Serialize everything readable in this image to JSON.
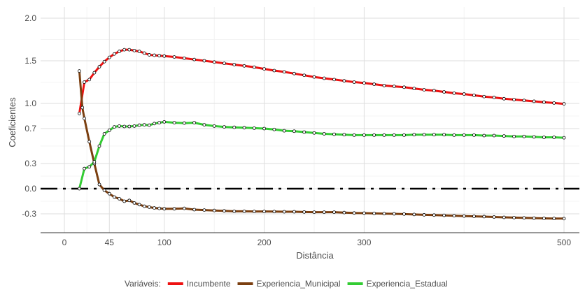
{
  "chart_data": {
    "type": "line",
    "xlabel": "Distância",
    "ylabel": "Coeficientes",
    "x_ticks": [
      0,
      45,
      100,
      200,
      300,
      500
    ],
    "x_tick_labels": [
      "0",
      "45",
      "100",
      "200",
      "300",
      "500"
    ],
    "y_ticks": [
      -0.3,
      0.0,
      0.3,
      0.7,
      1.0,
      1.5,
      2.0
    ],
    "y_tick_labels": [
      "-0.3",
      "0.0",
      "0.3",
      "0.7",
      "1.0",
      "1.5",
      "2.0"
    ],
    "xlim": [
      -20,
      510
    ],
    "ylim": [
      -0.45,
      2.07
    ],
    "y_scale": "nonlinear (labeled ticks)",
    "grid": true,
    "reference_line": {
      "y": 0.0,
      "style": "dash-dot",
      "color": "#000000"
    },
    "legend": {
      "title": "Variáveis:",
      "position": "bottom"
    },
    "colors": {
      "Incumbente": "#ee1111",
      "Experiencia_Municipal": "#7b3f10",
      "Experiencia_Estadual": "#33cc33"
    },
    "series": [
      {
        "name": "Incumbente",
        "points": [
          [
            15,
            0.88
          ],
          [
            20,
            1.25
          ],
          [
            25,
            1.28
          ],
          [
            30,
            1.36
          ],
          [
            35,
            1.43
          ],
          [
            40,
            1.49
          ],
          [
            45,
            1.54
          ],
          [
            50,
            1.58
          ],
          [
            55,
            1.61
          ],
          [
            60,
            1.63
          ],
          [
            65,
            1.63
          ],
          [
            70,
            1.62
          ],
          [
            75,
            1.61
          ],
          [
            80,
            1.59
          ],
          [
            85,
            1.57
          ],
          [
            90,
            1.565
          ],
          [
            95,
            1.56
          ],
          [
            100,
            1.555
          ],
          [
            110,
            1.545
          ],
          [
            120,
            1.53
          ],
          [
            130,
            1.515
          ],
          [
            140,
            1.5
          ],
          [
            150,
            1.485
          ],
          [
            160,
            1.47
          ],
          [
            170,
            1.455
          ],
          [
            180,
            1.44
          ],
          [
            190,
            1.425
          ],
          [
            200,
            1.405
          ],
          [
            210,
            1.385
          ],
          [
            220,
            1.37
          ],
          [
            230,
            1.35
          ],
          [
            240,
            1.33
          ],
          [
            250,
            1.31
          ],
          [
            260,
            1.295
          ],
          [
            270,
            1.28
          ],
          [
            280,
            1.265
          ],
          [
            290,
            1.25
          ],
          [
            300,
            1.24
          ],
          [
            310,
            1.225
          ],
          [
            320,
            1.21
          ],
          [
            330,
            1.2
          ],
          [
            340,
            1.19
          ],
          [
            350,
            1.175
          ],
          [
            360,
            1.16
          ],
          [
            370,
            1.15
          ],
          [
            380,
            1.135
          ],
          [
            390,
            1.12
          ],
          [
            400,
            1.11
          ],
          [
            410,
            1.095
          ],
          [
            420,
            1.08
          ],
          [
            430,
            1.07
          ],
          [
            440,
            1.055
          ],
          [
            450,
            1.045
          ],
          [
            460,
            1.035
          ],
          [
            470,
            1.025
          ],
          [
            480,
            1.015
          ],
          [
            490,
            1.005
          ],
          [
            500,
            0.995
          ]
        ]
      },
      {
        "name": "Experiencia_Municipal",
        "points": [
          [
            15,
            1.38
          ],
          [
            18,
            0.95
          ],
          [
            20,
            0.82
          ],
          [
            25,
            0.55
          ],
          [
            30,
            0.3
          ],
          [
            35,
            0.05
          ],
          [
            40,
            -0.02
          ],
          [
            45,
            -0.06
          ],
          [
            50,
            -0.1
          ],
          [
            55,
            -0.12
          ],
          [
            60,
            -0.15
          ],
          [
            65,
            -0.14
          ],
          [
            70,
            -0.17
          ],
          [
            75,
            -0.19
          ],
          [
            80,
            -0.21
          ],
          [
            85,
            -0.22
          ],
          [
            90,
            -0.23
          ],
          [
            95,
            -0.235
          ],
          [
            100,
            -0.24
          ],
          [
            110,
            -0.24
          ],
          [
            120,
            -0.235
          ],
          [
            130,
            -0.25
          ],
          [
            140,
            -0.255
          ],
          [
            150,
            -0.26
          ],
          [
            160,
            -0.265
          ],
          [
            170,
            -0.27
          ],
          [
            180,
            -0.27
          ],
          [
            190,
            -0.272
          ],
          [
            200,
            -0.272
          ],
          [
            210,
            -0.273
          ],
          [
            220,
            -0.275
          ],
          [
            230,
            -0.275
          ],
          [
            240,
            -0.278
          ],
          [
            250,
            -0.28
          ],
          [
            260,
            -0.28
          ],
          [
            270,
            -0.28
          ],
          [
            280,
            -0.285
          ],
          [
            290,
            -0.29
          ],
          [
            300,
            -0.292
          ],
          [
            310,
            -0.295
          ],
          [
            320,
            -0.298
          ],
          [
            330,
            -0.3
          ],
          [
            340,
            -0.302
          ],
          [
            350,
            -0.305
          ],
          [
            360,
            -0.308
          ],
          [
            370,
            -0.31
          ],
          [
            380,
            -0.312
          ],
          [
            390,
            -0.315
          ],
          [
            400,
            -0.318
          ],
          [
            410,
            -0.32
          ],
          [
            420,
            -0.322
          ],
          [
            430,
            -0.325
          ],
          [
            440,
            -0.328
          ],
          [
            450,
            -0.33
          ],
          [
            460,
            -0.332
          ],
          [
            470,
            -0.334
          ],
          [
            480,
            -0.336
          ],
          [
            490,
            -0.337
          ],
          [
            500,
            -0.338
          ]
        ]
      },
      {
        "name": "Experiencia_Estadual",
        "points": [
          [
            15,
            0.0
          ],
          [
            20,
            0.24
          ],
          [
            25,
            0.26
          ],
          [
            30,
            0.32
          ],
          [
            35,
            0.5
          ],
          [
            40,
            0.64
          ],
          [
            45,
            0.68
          ],
          [
            50,
            0.72
          ],
          [
            55,
            0.73
          ],
          [
            60,
            0.725
          ],
          [
            65,
            0.725
          ],
          [
            70,
            0.73
          ],
          [
            75,
            0.74
          ],
          [
            80,
            0.745
          ],
          [
            85,
            0.74
          ],
          [
            90,
            0.76
          ],
          [
            95,
            0.77
          ],
          [
            100,
            0.78
          ],
          [
            110,
            0.77
          ],
          [
            120,
            0.765
          ],
          [
            130,
            0.77
          ],
          [
            140,
            0.745
          ],
          [
            150,
            0.73
          ],
          [
            160,
            0.72
          ],
          [
            170,
            0.715
          ],
          [
            180,
            0.71
          ],
          [
            190,
            0.705
          ],
          [
            200,
            0.7
          ],
          [
            210,
            0.69
          ],
          [
            220,
            0.675
          ],
          [
            230,
            0.67
          ],
          [
            240,
            0.66
          ],
          [
            250,
            0.65
          ],
          [
            260,
            0.64
          ],
          [
            270,
            0.635
          ],
          [
            280,
            0.63
          ],
          [
            290,
            0.625
          ],
          [
            300,
            0.625
          ],
          [
            310,
            0.625
          ],
          [
            320,
            0.625
          ],
          [
            330,
            0.625
          ],
          [
            340,
            0.625
          ],
          [
            350,
            0.63
          ],
          [
            360,
            0.63
          ],
          [
            370,
            0.63
          ],
          [
            380,
            0.63
          ],
          [
            390,
            0.625
          ],
          [
            400,
            0.625
          ],
          [
            410,
            0.625
          ],
          [
            420,
            0.62
          ],
          [
            430,
            0.62
          ],
          [
            440,
            0.615
          ],
          [
            450,
            0.61
          ],
          [
            460,
            0.61
          ],
          [
            470,
            0.605
          ],
          [
            480,
            0.6
          ],
          [
            490,
            0.6
          ],
          [
            500,
            0.595
          ]
        ]
      }
    ]
  }
}
